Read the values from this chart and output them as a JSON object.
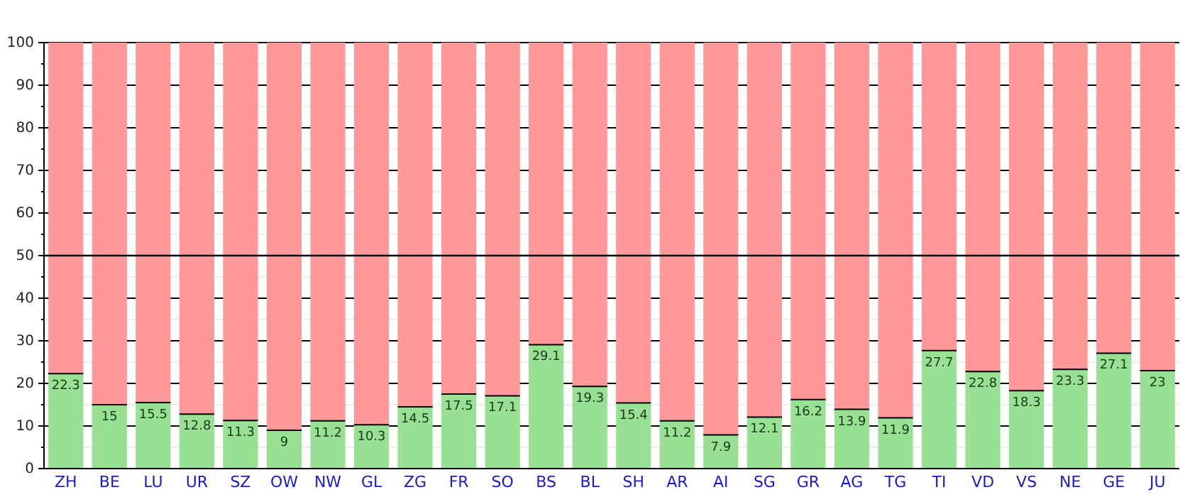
{
  "chart_data": {
    "type": "bar",
    "stacked": true,
    "categories": [
      "ZH",
      "BE",
      "LU",
      "UR",
      "SZ",
      "OW",
      "NW",
      "GL",
      "ZG",
      "FR",
      "SO",
      "BS",
      "BL",
      "SH",
      "AR",
      "AI",
      "SG",
      "GR",
      "AG",
      "TG",
      "TI",
      "VD",
      "VS",
      "NE",
      "GE",
      "JU"
    ],
    "series": [
      {
        "color": "#98e094",
        "values": [
          22.3,
          15,
          15.5,
          12.8,
          11.3,
          9,
          11.2,
          10.3,
          14.5,
          17.5,
          17.1,
          29.1,
          19.3,
          15.4,
          11.2,
          7.9,
          12.1,
          16.2,
          13.9,
          11.9,
          27.7,
          22.8,
          18.3,
          23.3,
          27.1,
          23
        ],
        "value_labels": [
          "22.3",
          "15",
          "15.5",
          "12.8",
          "11.3",
          "9",
          "11.2",
          "10.3",
          "14.5",
          "17.5",
          "17.1",
          "29.1",
          "19.3",
          "15.4",
          "11.2",
          "7.9",
          "12.1",
          "16.2",
          "13.9",
          "11.9",
          "27.7",
          "22.8",
          "18.3",
          "23.3",
          "27.1",
          "23"
        ]
      },
      {
        "color": "#ff9999",
        "values": [
          77.7,
          85,
          84.5,
          87.2,
          88.7,
          91,
          88.8,
          89.7,
          85.5,
          82.5,
          82.9,
          70.9,
          80.7,
          84.6,
          88.8,
          92.1,
          87.9,
          83.8,
          86.1,
          88.1,
          72.3,
          77.2,
          81.7,
          76.7,
          72.9,
          77
        ]
      }
    ],
    "ylim": [
      0,
      100
    ],
    "yticks": [
      0,
      {
        "value": 5,
        "label": null
      },
      10,
      {
        "value": 15,
        "label": null
      },
      20,
      {
        "value": 25,
        "label": null
      },
      30,
      {
        "value": 35,
        "label": null
      },
      40,
      {
        "value": 45,
        "label": null
      },
      50,
      {
        "value": 55,
        "label": null
      },
      60,
      {
        "value": 65,
        "label": null
      },
      70,
      {
        "value": 75,
        "label": null
      },
      80,
      {
        "value": 85,
        "label": null
      },
      90,
      {
        "value": 95,
        "label": null
      },
      100
    ],
    "grid": "y",
    "ref_lines": [
      {
        "axis": "y",
        "value": 50,
        "color": "#000000"
      }
    ]
  }
}
